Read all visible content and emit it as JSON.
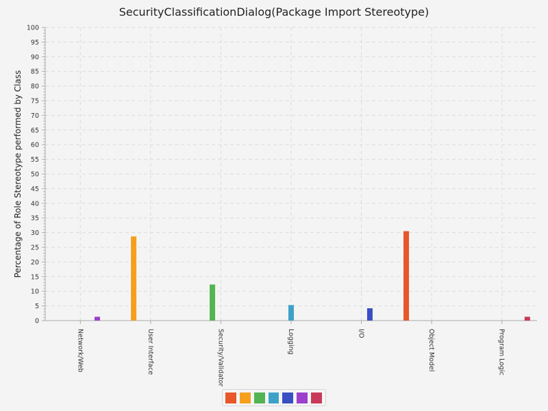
{
  "chart_data": {
    "type": "bar",
    "title": "SecurityClassificationDialog(Package Import Stereotype)",
    "xlabel": "",
    "ylabel": "Percentage of Role Stereotype performed by Class",
    "ylim": [
      0,
      100
    ],
    "yticks": [
      0,
      5,
      10,
      15,
      20,
      25,
      30,
      35,
      40,
      45,
      50,
      55,
      60,
      65,
      70,
      75,
      80,
      85,
      90,
      95,
      100
    ],
    "categories": [
      "Network/Web",
      "User Interface",
      "Security/Validator",
      "Logging",
      "I/O",
      "Object Model",
      "Program Logic"
    ],
    "series": [
      {
        "values": [
          0,
          0,
          0,
          0,
          0,
          30.5,
          0
        ],
        "color": "#e8562a"
      },
      {
        "values": [
          0,
          28.7,
          0,
          0,
          0,
          0,
          0
        ],
        "color": "#f5a01d"
      },
      {
        "values": [
          0,
          0,
          12.3,
          0,
          0,
          0,
          0
        ],
        "color": "#52b452"
      },
      {
        "values": [
          0,
          0,
          0,
          5.3,
          0,
          0,
          0
        ],
        "color": "#3ea2c8"
      },
      {
        "values": [
          0,
          0,
          0,
          0,
          4.2,
          0,
          0
        ],
        "color": "#3a4fc2"
      },
      {
        "values": [
          1.3,
          0,
          0,
          0,
          0,
          0,
          0
        ],
        "color": "#9b3fcc"
      },
      {
        "values": [
          0,
          0,
          0,
          0,
          0,
          0,
          1.3
        ],
        "color": "#c8395a"
      }
    ],
    "grid": true,
    "legend_position": "bottom"
  }
}
